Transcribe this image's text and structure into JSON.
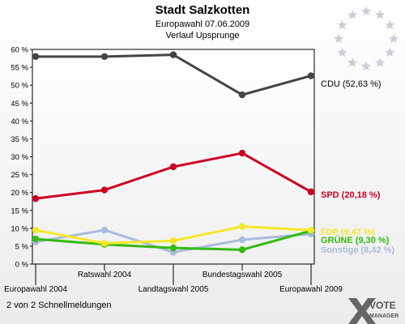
{
  "header": {
    "title": "Stadt Salzkotten",
    "subtitle": "Europawahl 07.06.2009",
    "subtitle2": "Verlauf Upsprunge"
  },
  "footer": {
    "text": "2 von 2 Schnellmeldungen",
    "logo_line1": "VOTE",
    "logo_line2": "MANAGER"
  },
  "chart_data": {
    "type": "line",
    "categories": [
      "Europawahl 2004",
      "Ratswahl 2004",
      "Landtagswahl 2005",
      "Bundestagswahl 2005",
      "Europawahl 2009"
    ],
    "ylim": [
      0,
      60
    ],
    "yticks": [
      "0 %",
      "5 %",
      "10 %",
      "15 %",
      "20 %",
      "25 %",
      "30 %",
      "35 %",
      "40 %",
      "45 %",
      "50 %",
      "55 %",
      "60 %"
    ],
    "grid": false,
    "series": [
      {
        "name": "CDU",
        "label": "CDU (52,63 %)",
        "color": "#444444",
        "values": [
          58.0,
          58.0,
          58.5,
          47.3,
          52.63
        ]
      },
      {
        "name": "SPD",
        "label": "SPD (20,18 %)",
        "color": "#cc0022",
        "values": [
          18.3,
          20.7,
          27.2,
          31.0,
          20.18
        ]
      },
      {
        "name": "FDP",
        "label": "FDP (9,47 %)",
        "color": "#f5e829",
        "values": [
          9.5,
          5.8,
          6.5,
          10.5,
          9.47
        ]
      },
      {
        "name": "GRÜNE",
        "label": "GRÜNE (9,30 %)",
        "color": "#33bb11",
        "values": [
          7.0,
          5.5,
          4.5,
          4.0,
          9.3
        ]
      },
      {
        "name": "Sonstige",
        "label": "Sonstige (8,42 %)",
        "color": "#aabbdd",
        "values": [
          6.2,
          9.5,
          3.3,
          6.8,
          8.42
        ]
      }
    ]
  }
}
